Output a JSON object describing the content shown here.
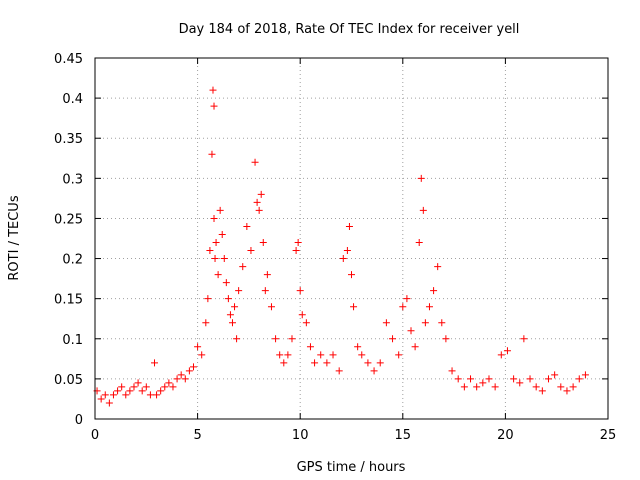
{
  "chart_data": {
    "type": "scatter",
    "title": "Day 184 of 2018, Rate Of TEC Index for receiver yell",
    "xlabel": "GPS time / hours",
    "ylabel": "ROTI / TECUs",
    "xlim": [
      0,
      25
    ],
    "ylim": [
      0,
      0.45
    ],
    "xticks": [
      0,
      5,
      10,
      15,
      20,
      25
    ],
    "yticks": [
      0,
      0.05,
      0.1,
      0.15,
      0.2,
      0.25,
      0.3,
      0.35,
      0.4,
      0.45
    ],
    "xtick_labels": [
      "0",
      "5",
      "10",
      "15",
      "20",
      "25"
    ],
    "ytick_labels": [
      "0",
      "0.05",
      "0.1",
      "0.15",
      "0.2",
      "0.25",
      "0.3",
      "0.35",
      "0.4",
      "0.45"
    ],
    "grid": true,
    "marker": "+",
    "marker_color": "#ff0000",
    "series": [
      {
        "name": "ROTI",
        "x": [
          0.1,
          0.3,
          0.5,
          0.7,
          0.9,
          1.1,
          1.3,
          1.5,
          1.7,
          1.9,
          2.1,
          2.3,
          2.5,
          2.7,
          2.9,
          3.0,
          3.2,
          3.4,
          3.6,
          3.8,
          4.0,
          4.2,
          4.4,
          4.6,
          4.8,
          5.0,
          5.2,
          5.4,
          5.5,
          5.6,
          5.7,
          5.75,
          5.8,
          5.8,
          5.85,
          5.9,
          6.0,
          6.1,
          6.2,
          6.3,
          6.4,
          6.5,
          6.6,
          6.7,
          6.8,
          6.9,
          7.0,
          7.2,
          7.4,
          7.6,
          7.8,
          7.9,
          8.0,
          8.1,
          8.2,
          8.3,
          8.4,
          8.6,
          8.8,
          9.0,
          9.2,
          9.4,
          9.6,
          9.8,
          9.9,
          10.0,
          10.1,
          10.3,
          10.5,
          10.7,
          11.0,
          11.3,
          11.6,
          11.9,
          12.1,
          12.3,
          12.4,
          12.5,
          12.6,
          12.8,
          13.0,
          13.3,
          13.6,
          13.9,
          14.2,
          14.5,
          14.8,
          15.0,
          15.2,
          15.4,
          15.6,
          15.8,
          15.9,
          16.0,
          16.1,
          16.3,
          16.5,
          16.7,
          16.9,
          17.1,
          17.4,
          17.7,
          18.0,
          18.3,
          18.6,
          18.9,
          19.2,
          19.5,
          19.8,
          20.1,
          20.4,
          20.7,
          20.9,
          21.2,
          21.5,
          21.8,
          22.1,
          22.4,
          22.7,
          23.0,
          23.3,
          23.6,
          23.9
        ],
        "y": [
          0.035,
          0.025,
          0.03,
          0.02,
          0.03,
          0.035,
          0.04,
          0.03,
          0.035,
          0.04,
          0.045,
          0.035,
          0.04,
          0.03,
          0.07,
          0.03,
          0.035,
          0.04,
          0.045,
          0.04,
          0.05,
          0.055,
          0.05,
          0.06,
          0.065,
          0.09,
          0.08,
          0.12,
          0.15,
          0.21,
          0.33,
          0.41,
          0.39,
          0.25,
          0.2,
          0.22,
          0.18,
          0.26,
          0.23,
          0.2,
          0.17,
          0.15,
          0.13,
          0.12,
          0.14,
          0.1,
          0.16,
          0.19,
          0.24,
          0.21,
          0.32,
          0.27,
          0.26,
          0.28,
          0.22,
          0.16,
          0.18,
          0.14,
          0.1,
          0.08,
          0.07,
          0.08,
          0.1,
          0.21,
          0.22,
          0.16,
          0.13,
          0.12,
          0.09,
          0.07,
          0.08,
          0.07,
          0.08,
          0.06,
          0.2,
          0.21,
          0.24,
          0.18,
          0.14,
          0.09,
          0.08,
          0.07,
          0.06,
          0.07,
          0.12,
          0.1,
          0.08,
          0.14,
          0.15,
          0.11,
          0.09,
          0.22,
          0.3,
          0.26,
          0.12,
          0.14,
          0.16,
          0.19,
          0.12,
          0.1,
          0.06,
          0.05,
          0.04,
          0.05,
          0.04,
          0.045,
          0.05,
          0.04,
          0.08,
          0.085,
          0.05,
          0.045,
          0.1,
          0.05,
          0.04,
          0.035,
          0.05,
          0.055,
          0.04,
          0.035,
          0.04,
          0.05,
          0.055
        ]
      }
    ]
  }
}
